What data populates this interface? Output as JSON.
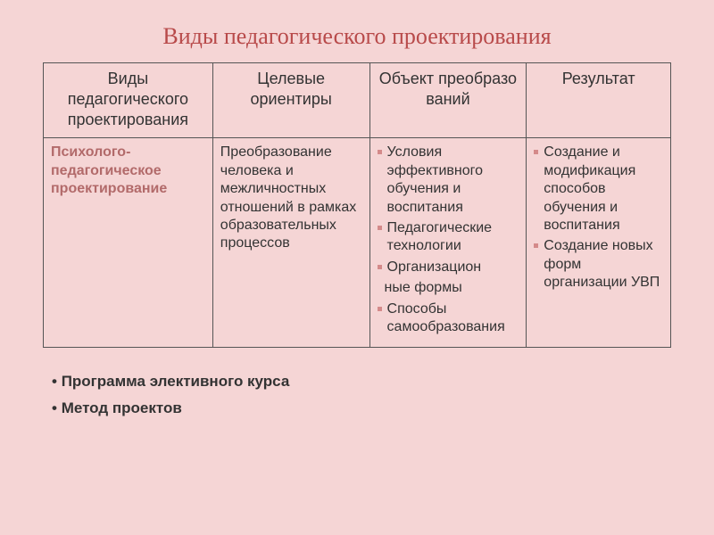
{
  "title": "Виды педагогического проектирования",
  "table": {
    "headers": {
      "c1": "Виды педагогического проектирования",
      "c2": "Целевые ориентиры",
      "c3_l1": "Объект преобразо",
      "c3_l2": "ваний",
      "c4": "Результат"
    },
    "row": {
      "c1": "Психолого-педагогическое проектирование",
      "c2": "Преобразование человека и межличностных отношений в рамках образовательных процессов",
      "c3": {
        "i1": "Условия эффективного обучения и воспитания",
        "i2": "Педагогические технологии",
        "i3": "Организацион",
        "i3b": "ные формы",
        "i4": "Способы самообразования"
      },
      "c4": {
        "i1": "Создание и модификация способов обучения и воспитания",
        "i2": "Создание новых форм организации УВП"
      }
    }
  },
  "footer": {
    "i1": "Программа элективного курса",
    "i2": "Метод проектов"
  }
}
